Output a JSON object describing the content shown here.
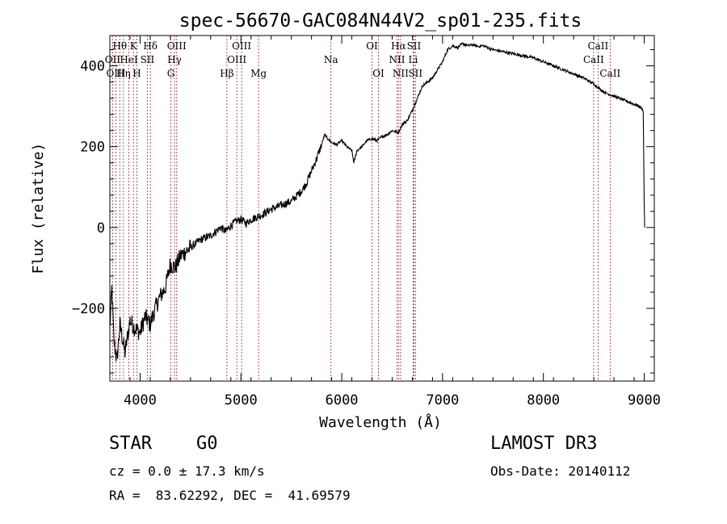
{
  "chart_data": {
    "type": "line",
    "title": "spec-56670-GAC084N44V2_sp01-235.fits",
    "xlabel": "Wavelength (Å)",
    "ylabel": "Flux (relative)",
    "xlim": [
      3700,
      9100
    ],
    "ylim": [
      -380,
      475
    ],
    "x_ticks": [
      4000,
      5000,
      6000,
      7000,
      8000,
      9000
    ],
    "y_ticks": [
      -200,
      0,
      200,
      400
    ],
    "series": [
      {
        "name": "spectrum",
        "color": "#000000",
        "points": [
          [
            3700,
            -250
          ],
          [
            3720,
            -150
          ],
          [
            3740,
            -280
          ],
          [
            3770,
            -330
          ],
          [
            3800,
            -240
          ],
          [
            3850,
            -310
          ],
          [
            3900,
            -230
          ],
          [
            3950,
            -250
          ],
          [
            4000,
            -260
          ],
          [
            4050,
            -220
          ],
          [
            4100,
            -240
          ],
          [
            4150,
            -200
          ],
          [
            4200,
            -170
          ],
          [
            4250,
            -150
          ],
          [
            4300,
            -90
          ],
          [
            4350,
            -100
          ],
          [
            4400,
            -70
          ],
          [
            4450,
            -60
          ],
          [
            4500,
            -50
          ],
          [
            4550,
            -40
          ],
          [
            4600,
            -30
          ],
          [
            4650,
            -25
          ],
          [
            4700,
            -20
          ],
          [
            4750,
            -10
          ],
          [
            4800,
            0
          ],
          [
            4850,
            -10
          ],
          [
            4900,
            5
          ],
          [
            4950,
            15
          ],
          [
            5000,
            20
          ],
          [
            5050,
            10
          ],
          [
            5100,
            20
          ],
          [
            5150,
            25
          ],
          [
            5200,
            30
          ],
          [
            5300,
            45
          ],
          [
            5400,
            55
          ],
          [
            5500,
            65
          ],
          [
            5600,
            90
          ],
          [
            5650,
            110
          ],
          [
            5700,
            140
          ],
          [
            5750,
            170
          ],
          [
            5800,
            205
          ],
          [
            5830,
            230
          ],
          [
            5860,
            220
          ],
          [
            5900,
            210
          ],
          [
            5950,
            205
          ],
          [
            6000,
            215
          ],
          [
            6050,
            200
          ],
          [
            6100,
            190
          ],
          [
            6120,
            160
          ],
          [
            6150,
            190
          ],
          [
            6200,
            200
          ],
          [
            6250,
            215
          ],
          [
            6300,
            220
          ],
          [
            6350,
            215
          ],
          [
            6400,
            225
          ],
          [
            6450,
            230
          ],
          [
            6500,
            240
          ],
          [
            6560,
            235
          ],
          [
            6600,
            255
          ],
          [
            6650,
            265
          ],
          [
            6700,
            290
          ],
          [
            6750,
            320
          ],
          [
            6800,
            350
          ],
          [
            6850,
            360
          ],
          [
            6900,
            370
          ],
          [
            6950,
            390
          ],
          [
            7000,
            410
          ],
          [
            7050,
            440
          ],
          [
            7100,
            450
          ],
          [
            7150,
            445
          ],
          [
            7200,
            455
          ],
          [
            7250,
            450
          ],
          [
            7300,
            452
          ],
          [
            7350,
            448
          ],
          [
            7400,
            450
          ],
          [
            7500,
            440
          ],
          [
            7600,
            435
          ],
          [
            7700,
            430
          ],
          [
            7800,
            425
          ],
          [
            7900,
            420
          ],
          [
            8000,
            410
          ],
          [
            8100,
            400
          ],
          [
            8200,
            390
          ],
          [
            8300,
            380
          ],
          [
            8400,
            370
          ],
          [
            8500,
            355
          ],
          [
            8550,
            345
          ],
          [
            8600,
            335
          ],
          [
            8700,
            325
          ],
          [
            8800,
            315
          ],
          [
            8900,
            305
          ],
          [
            8950,
            300
          ],
          [
            8990,
            290
          ],
          [
            9000,
            60
          ],
          [
            9005,
            0
          ]
        ]
      }
    ],
    "line_labels": [
      {
        "text": "Hθ",
        "wavelength": 3798,
        "row": 1
      },
      {
        "text": "OII",
        "wavelength": 3727,
        "row": 2
      },
      {
        "text": "OIII",
        "wavelength": 3760,
        "row": 3
      },
      {
        "text": "K",
        "wavelength": 3934,
        "row": 1
      },
      {
        "text": "HeI",
        "wavelength": 3889,
        "row": 2
      },
      {
        "text": "Hη",
        "wavelength": 3835,
        "row": 3
      },
      {
        "text": "Hδ",
        "wavelength": 4102,
        "row": 1
      },
      {
        "text": "SII",
        "wavelength": 4072,
        "row": 2
      },
      {
        "text": "H",
        "wavelength": 3968,
        "row": 3
      },
      {
        "text": "OIII",
        "wavelength": 4363,
        "row": 1
      },
      {
        "text": "Hγ",
        "wavelength": 4341,
        "row": 2
      },
      {
        "text": "G",
        "wavelength": 4305,
        "row": 3
      },
      {
        "text": "OIII",
        "wavelength": 5007,
        "row": 1
      },
      {
        "text": "OIII",
        "wavelength": 4959,
        "row": 2
      },
      {
        "text": "Hβ",
        "wavelength": 4861,
        "row": 3
      },
      {
        "text": "Mg",
        "wavelength": 5175,
        "row": 3
      },
      {
        "text": "Na",
        "wavelength": 5893,
        "row": 2
      },
      {
        "text": "OI",
        "wavelength": 6300,
        "row": 1
      },
      {
        "text": "OI",
        "wavelength": 6364,
        "row": 3
      },
      {
        "text": "Hα",
        "wavelength": 6563,
        "row": 1
      },
      {
        "text": "SII",
        "wavelength": 6716,
        "row": 1
      },
      {
        "text": "NII",
        "wavelength": 6548,
        "row": 2
      },
      {
        "text": "Li",
        "wavelength": 6708,
        "row": 2
      },
      {
        "text": "NII",
        "wavelength": 6583,
        "row": 3
      },
      {
        "text": "SII",
        "wavelength": 6731,
        "row": 3
      },
      {
        "text": "CaII",
        "wavelength": 8542,
        "row": 1
      },
      {
        "text": "CaII",
        "wavelength": 8498,
        "row": 2
      },
      {
        "text": "CaII",
        "wavelength": 8662,
        "row": 3
      }
    ],
    "reference_lines": [
      3727,
      3760,
      3798,
      3835,
      3889,
      3934,
      3968,
      4072,
      4102,
      4305,
      4341,
      4363,
      4861,
      4959,
      5007,
      5175,
      5893,
      6300,
      6364,
      6548,
      6563,
      6583,
      6708,
      6716,
      6731,
      8498,
      8542,
      8662
    ],
    "colors": {
      "reference_line": "#b22222",
      "spectrum": "#000000",
      "axes": "#000000"
    }
  },
  "info": {
    "class_label": "STAR",
    "subclass": "G0",
    "survey": "LAMOST DR3",
    "redshift_line": "cz = 0.0 ± 17.3 km/s",
    "obs_date_line": "Obs-Date: 20140112",
    "coords_line": "RA =  83.62292, DEC =  41.69579"
  }
}
